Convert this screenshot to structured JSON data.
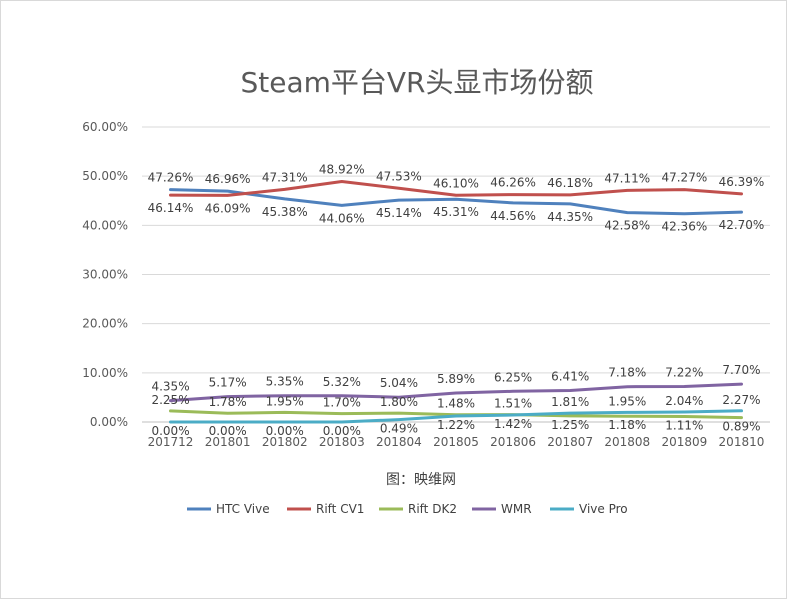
{
  "chart_data": {
    "type": "line",
    "title": "Steam平台VR头显市场份额",
    "caption": "图：映维网",
    "xlabel": "",
    "ylabel": "",
    "ylim": [
      0,
      60
    ],
    "yticks": [
      "0.00%",
      "10.00%",
      "20.00%",
      "30.00%",
      "40.00%",
      "50.00%",
      "60.00%"
    ],
    "grid": true,
    "legend_position": "bottom",
    "categories": [
      "201712",
      "201801",
      "201802",
      "201803",
      "201804",
      "201805",
      "201806",
      "201807",
      "201808",
      "201809",
      "201810"
    ],
    "series": [
      {
        "name": "HTC Vive",
        "color": "#4f81bd",
        "values": [
          47.26,
          46.96,
          45.38,
          44.06,
          45.14,
          45.31,
          44.56,
          44.35,
          42.58,
          42.36,
          42.7
        ],
        "labels": [
          "47.26%",
          "46.96%",
          "45.38%",
          "44.06%",
          "45.14%",
          "45.31%",
          "44.56%",
          "44.35%",
          "42.58%",
          "42.36%",
          "42.70%"
        ]
      },
      {
        "name": "Rift CV1",
        "color": "#c0504d",
        "values": [
          46.14,
          46.09,
          47.31,
          48.92,
          47.53,
          46.1,
          46.26,
          46.18,
          47.11,
          47.27,
          46.39
        ],
        "labels": [
          "46.14%",
          "46.09%",
          "47.31%",
          "48.92%",
          "47.53%",
          "46.10%",
          "46.26%",
          "46.18%",
          "47.11%",
          "47.27%",
          "46.39%"
        ]
      },
      {
        "name": "Rift DK2",
        "color": "#9bbb59",
        "values": [
          2.25,
          1.78,
          1.95,
          1.7,
          1.8,
          1.48,
          1.51,
          1.25,
          1.18,
          1.11,
          0.89
        ],
        "labels": [
          "2.25%",
          "1.78%",
          "1.95%",
          "1.70%",
          "1.80%",
          "1.48%",
          "1.51%",
          "1.25%",
          "1.18%",
          "1.11%",
          "0.89%"
        ]
      },
      {
        "name": "WMR",
        "color": "#8064a2",
        "values": [
          4.35,
          5.17,
          5.35,
          5.32,
          5.04,
          5.89,
          6.25,
          6.41,
          7.18,
          7.22,
          7.7
        ],
        "labels": [
          "4.35%",
          "5.17%",
          "5.35%",
          "5.32%",
          "5.04%",
          "5.89%",
          "6.25%",
          "6.41%",
          "7.18%",
          "7.22%",
          "7.70%"
        ]
      },
      {
        "name": "Vive Pro",
        "color": "#4bacc6",
        "values": [
          0.0,
          0.0,
          0.0,
          0.0,
          0.49,
          1.22,
          1.42,
          1.81,
          1.95,
          2.04,
          2.27
        ],
        "labels": [
          "0.00%",
          "0.00%",
          "0.00%",
          "0.00%",
          "0.49%",
          "1.22%",
          "1.42%",
          "1.81%",
          "1.95%",
          "2.04%",
          "2.27%"
        ]
      }
    ]
  }
}
